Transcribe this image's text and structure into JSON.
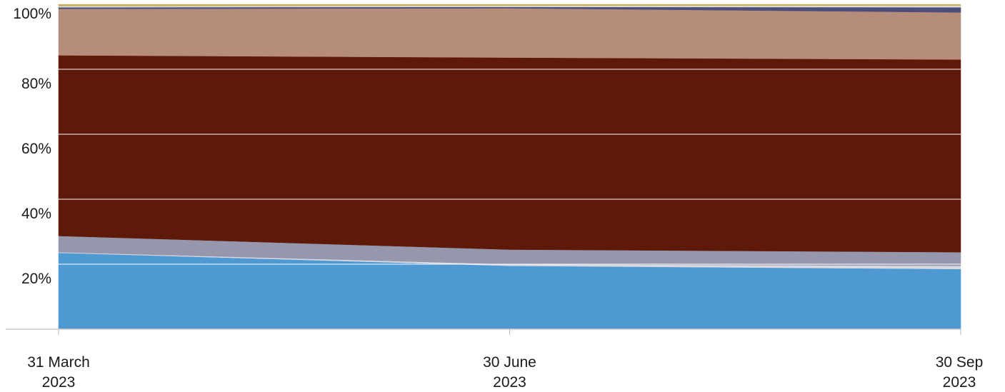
{
  "chart_data": {
    "type": "area",
    "stacked": true,
    "normalized": true,
    "x": [
      "2023-03-31",
      "2023-06-30",
      "2023-09-30"
    ],
    "x_tick_labels": [
      {
        "line1": "31 March",
        "line2": "2023"
      },
      {
        "line1": "30 June",
        "line2": "2023"
      },
      {
        "line1": "30 Sep",
        "line2": "2023"
      }
    ],
    "y_ticks": [
      20,
      40,
      60,
      80,
      100
    ],
    "y_tick_labels": [
      "20%",
      "40%",
      "60%",
      "80%",
      "100%"
    ],
    "ylim": [
      0,
      100
    ],
    "grid": true,
    "legend": "none",
    "series": [
      {
        "color": "#4f99d3",
        "values": [
          23.5,
          19.5,
          18.5
        ]
      },
      {
        "color": "#d8d8e0",
        "values": [
          0.2,
          0.5,
          1.0
        ]
      },
      {
        "color": "#9696ad",
        "values": [
          5.0,
          4.5,
          4.2
        ]
      },
      {
        "color": "#5e1909",
        "values": [
          55.6,
          59.1,
          59.3
        ]
      },
      {
        "color": "#b68c7b",
        "values": [
          14.3,
          15.2,
          14.5
        ]
      },
      {
        "color": "#4b4f7a",
        "values": [
          0.5,
          0.4,
          1.6
        ]
      },
      {
        "color": "#e8e8ea",
        "values": [
          0.3,
          0.3,
          0.4
        ]
      },
      {
        "color": "#c9b269",
        "values": [
          0.6,
          0.5,
          0.5
        ]
      }
    ]
  }
}
